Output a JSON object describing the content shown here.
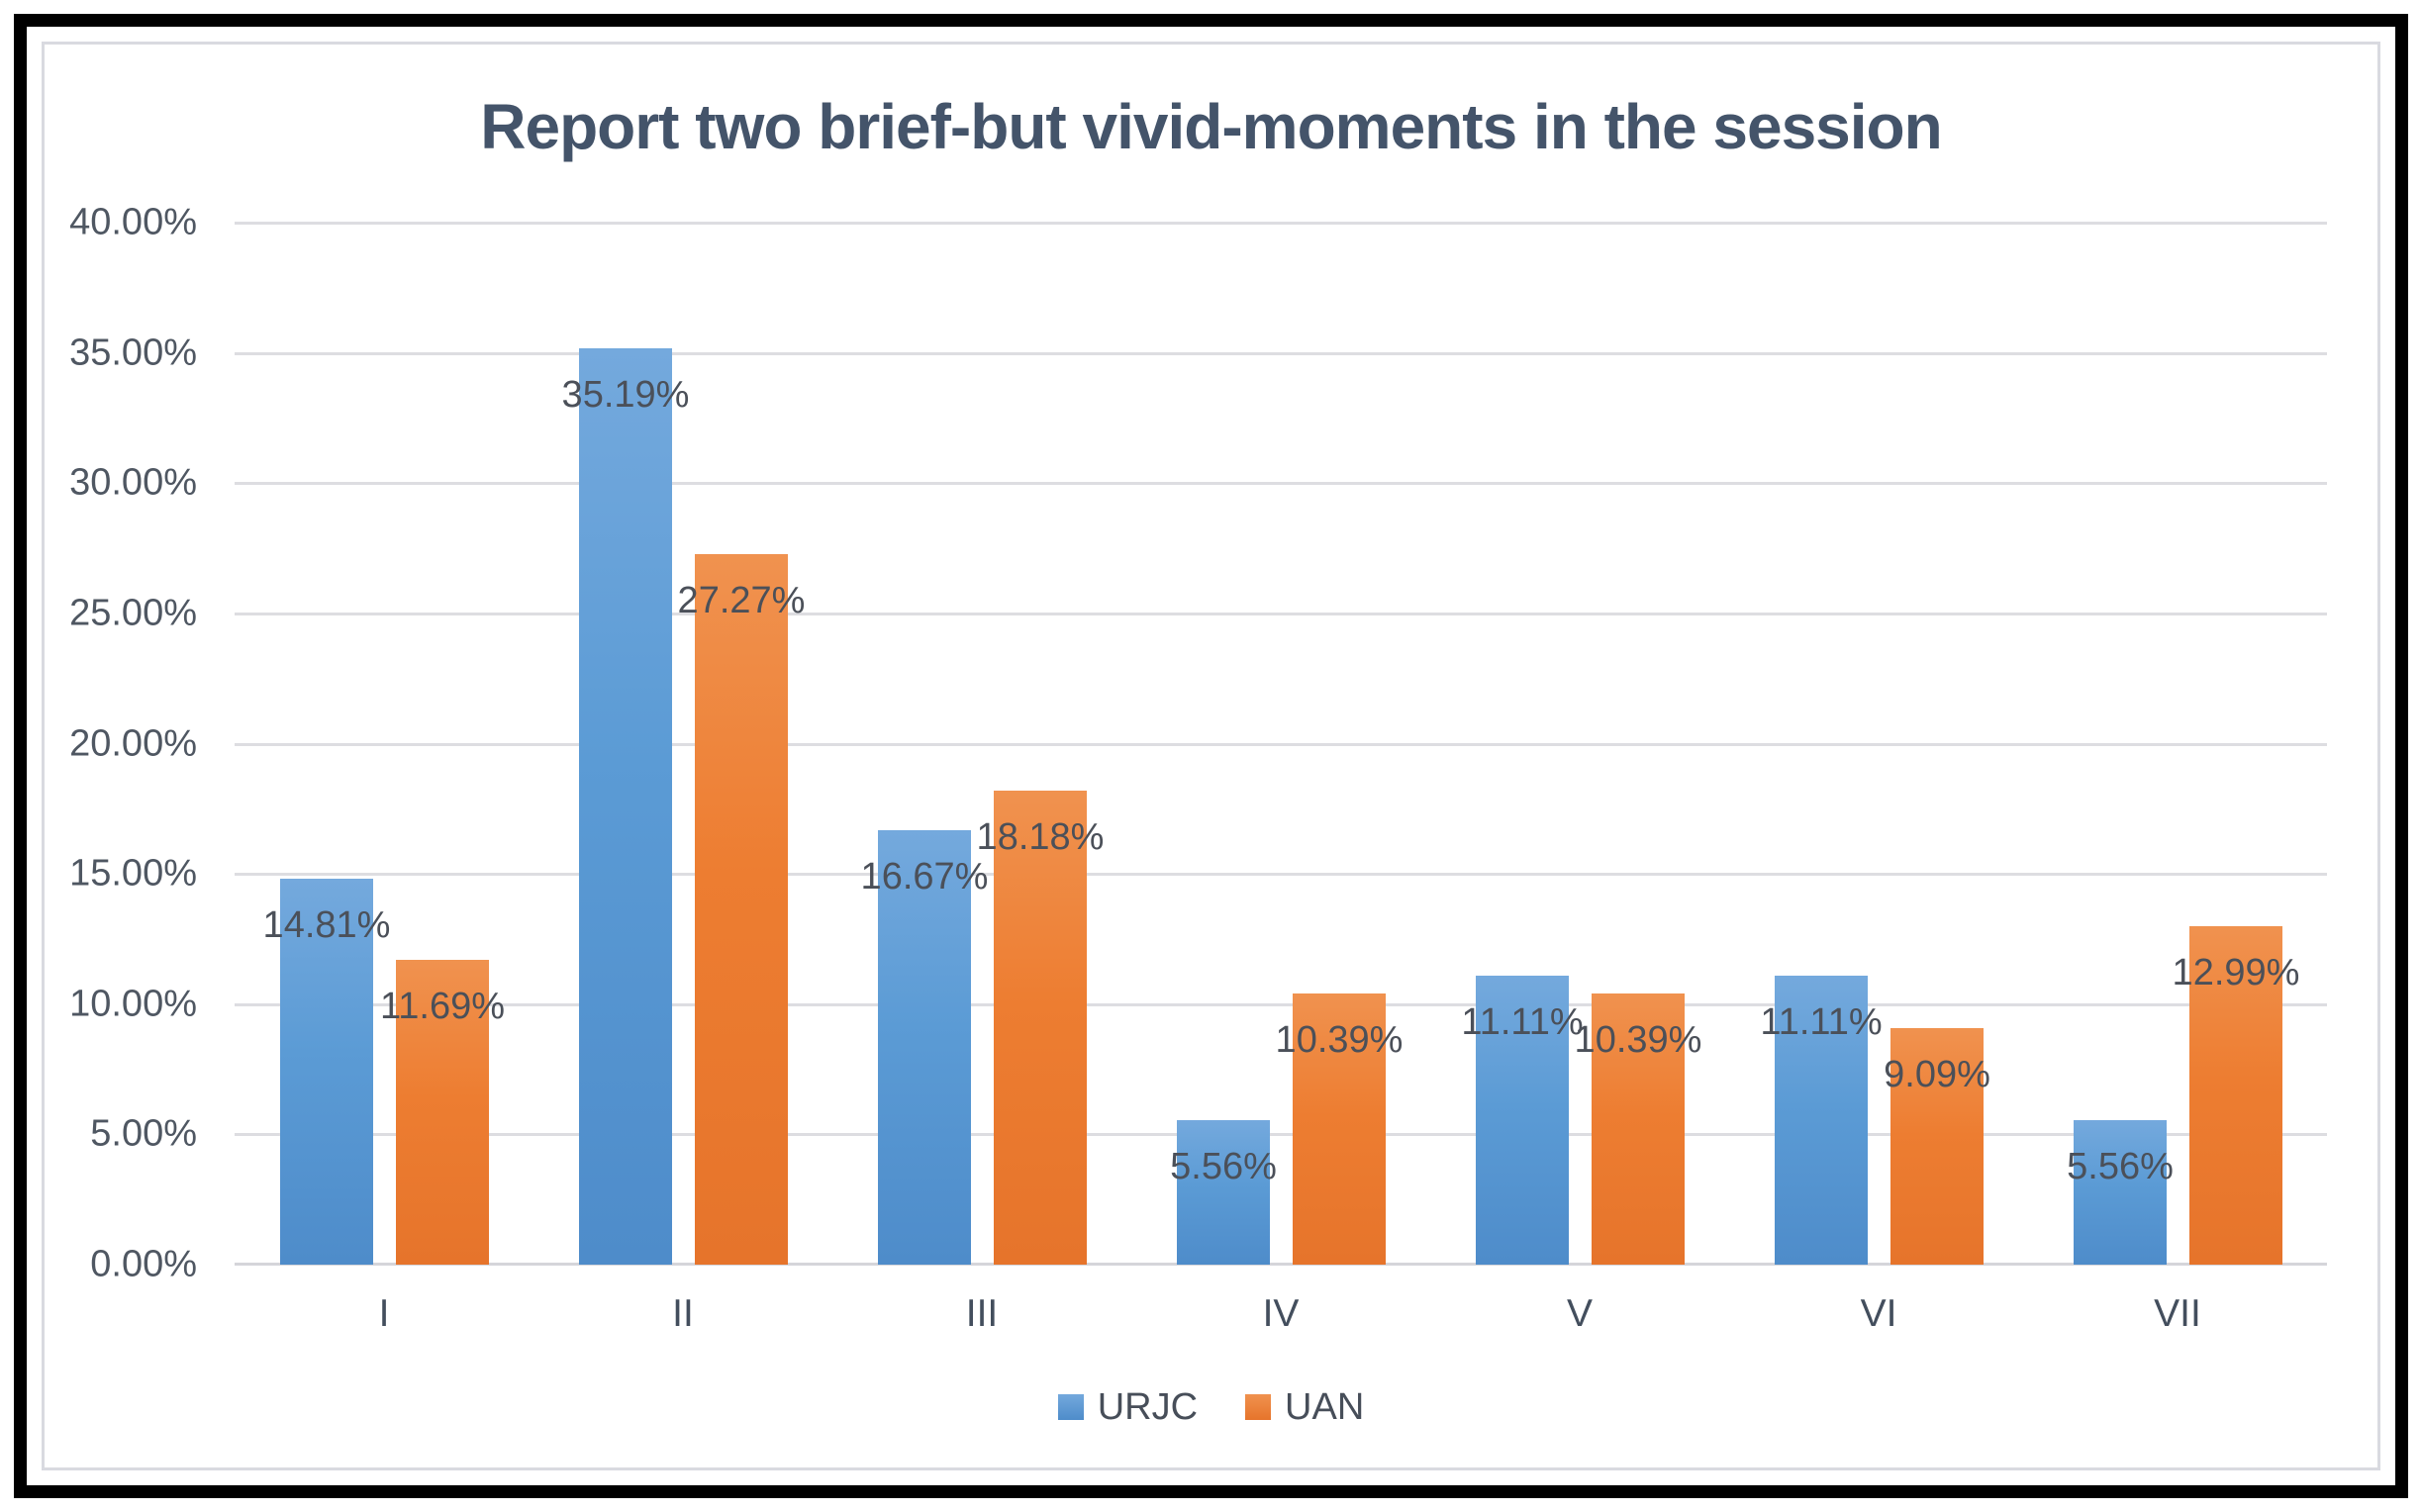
{
  "frame": {
    "background": "#FFFFFF",
    "border_color": "#000000",
    "inner_border_color": "#D9DAE0"
  },
  "chart_data": {
    "type": "bar",
    "title": "Report two brief-but vivid-moments in the session",
    "title_color": "#44546A",
    "categories": [
      "I",
      "II",
      "III",
      "IV",
      "V",
      "VI",
      "VII"
    ],
    "series": [
      {
        "name": "URJC",
        "color": "#5B9BD5",
        "color_light": "#74A9DD",
        "color_dark": "#4E8CCA",
        "values": [
          14.81,
          35.19,
          16.67,
          5.56,
          11.11,
          11.11,
          5.56
        ],
        "labels": [
          "14.81%",
          "35.19%",
          "16.67%",
          "5.56%",
          "11.11%",
          "11.11%",
          "5.56%"
        ]
      },
      {
        "name": "UAN",
        "color": "#ED7D31",
        "color_light": "#F0924F",
        "color_dark": "#E6742B",
        "values": [
          11.69,
          27.27,
          18.18,
          10.39,
          10.39,
          9.09,
          12.99
        ],
        "labels": [
          "11.69%",
          "27.27%",
          "18.18%",
          "10.39%",
          "10.39%",
          "9.09%",
          "12.99%"
        ]
      }
    ],
    "y_axis": {
      "min": 0,
      "max": 40,
      "step": 5,
      "tick_labels": [
        "40.00%",
        "35.00%",
        "30.00%",
        "25.00%",
        "20.00%",
        "15.00%",
        "10.00%",
        "5.00%",
        "0.00%"
      ],
      "tick_color": "#4F5762"
    },
    "data_label_color": "#4B5059",
    "category_color": "#434E5D",
    "gridline_color": "#DDDDE1",
    "axis_line_color": "#D5D5DA",
    "grid": true,
    "legend_position": "bottom",
    "legend_text_color": "#474E59"
  }
}
